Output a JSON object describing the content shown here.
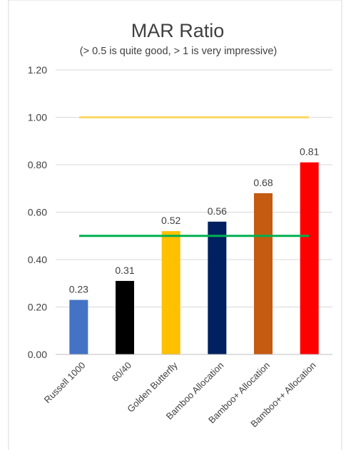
{
  "chart_data": {
    "type": "bar",
    "title": "MAR Ratio",
    "subtitle": "(> 0.5 is quite good, > 1 is very impressive)",
    "categories": [
      "Russell 1000",
      "60/40",
      "Golden Butterfly",
      "Bamboo Allocation",
      "Bamboo+ Allocation",
      "Bamboo++ Allocation"
    ],
    "values": [
      0.23,
      0.31,
      0.52,
      0.56,
      0.68,
      0.81
    ],
    "data_labels": [
      "0.23",
      "0.31",
      "0.52",
      "0.56",
      "0.68",
      "0.81"
    ],
    "bar_colors": [
      "#4472C4",
      "#000000",
      "#FFC000",
      "#002060",
      "#C55A11",
      "#FF0000"
    ],
    "ylim": [
      0,
      1.2
    ],
    "y_ticks": [
      "0.00",
      "0.20",
      "0.40",
      "0.60",
      "0.80",
      "1.00",
      "1.20"
    ],
    "y_tick_values": [
      0,
      0.2,
      0.4,
      0.6,
      0.8,
      1.0,
      1.2
    ],
    "reference_lines": [
      {
        "value": 1.0,
        "color": "#FFD966"
      },
      {
        "value": 0.5,
        "color": "#00B050"
      }
    ],
    "grid": true,
    "gridline_color": "#D9D9D9",
    "axis_color": "#BFBFBF",
    "legend": "none",
    "xlabel": "",
    "ylabel": ""
  }
}
